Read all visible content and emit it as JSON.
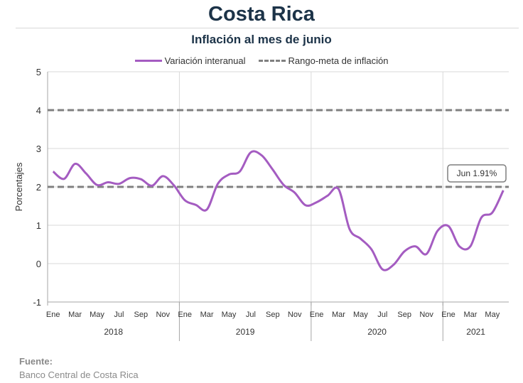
{
  "title": "Costa Rica",
  "chart_data": {
    "type": "line",
    "title": "Inflación al mes de junio",
    "ylabel": "Porcentajes",
    "xlabel": "",
    "ylim": [
      -1,
      5
    ],
    "yticks": [
      "5",
      "4",
      "3",
      "2",
      "1",
      "0",
      "-1"
    ],
    "month_tick_labels": [
      "Ene",
      "Mar",
      "May",
      "Jul",
      "Sep",
      "Nov",
      "Ene",
      "Mar",
      "May",
      "Jul",
      "Sep",
      "Nov",
      "Ene",
      "Mar",
      "May",
      "Jul",
      "Sep",
      "Nov",
      "Ene",
      "Mar",
      "May"
    ],
    "years": [
      "2018",
      "2019",
      "2020",
      "2021"
    ],
    "x": [
      "2018-01",
      "2018-02",
      "2018-03",
      "2018-04",
      "2018-05",
      "2018-06",
      "2018-07",
      "2018-08",
      "2018-09",
      "2018-10",
      "2018-11",
      "2018-12",
      "2019-01",
      "2019-02",
      "2019-03",
      "2019-04",
      "2019-05",
      "2019-06",
      "2019-07",
      "2019-08",
      "2019-09",
      "2019-10",
      "2019-11",
      "2019-12",
      "2020-01",
      "2020-02",
      "2020-03",
      "2020-04",
      "2020-05",
      "2020-06",
      "2020-07",
      "2020-08",
      "2020-09",
      "2020-10",
      "2020-11",
      "2020-12",
      "2021-01",
      "2021-02",
      "2021-03",
      "2021-04",
      "2021-05",
      "2021-06"
    ],
    "series": [
      {
        "name": "Variación interanual",
        "color": "#a45cc1",
        "values": [
          2.4,
          2.21,
          2.6,
          2.35,
          2.05,
          2.12,
          2.08,
          2.23,
          2.2,
          2.03,
          2.28,
          2.04,
          1.65,
          1.53,
          1.41,
          2.08,
          2.32,
          2.4,
          2.9,
          2.82,
          2.45,
          2.05,
          1.85,
          1.52,
          1.6,
          1.77,
          1.94,
          0.9,
          0.65,
          0.37,
          -0.15,
          -0.03,
          0.32,
          0.45,
          0.25,
          0.85,
          0.98,
          0.45,
          0.45,
          1.2,
          1.33,
          1.91
        ]
      },
      {
        "name": "Rango-meta de inflación",
        "color": "#808080",
        "style": "dashed",
        "bounds": [
          2,
          4
        ]
      }
    ],
    "annotation": "Jun 1.91%",
    "grid": true,
    "legend": "top-center"
  },
  "source": {
    "label": "Fuente:",
    "name": "Banco Central de Costa Rica"
  }
}
